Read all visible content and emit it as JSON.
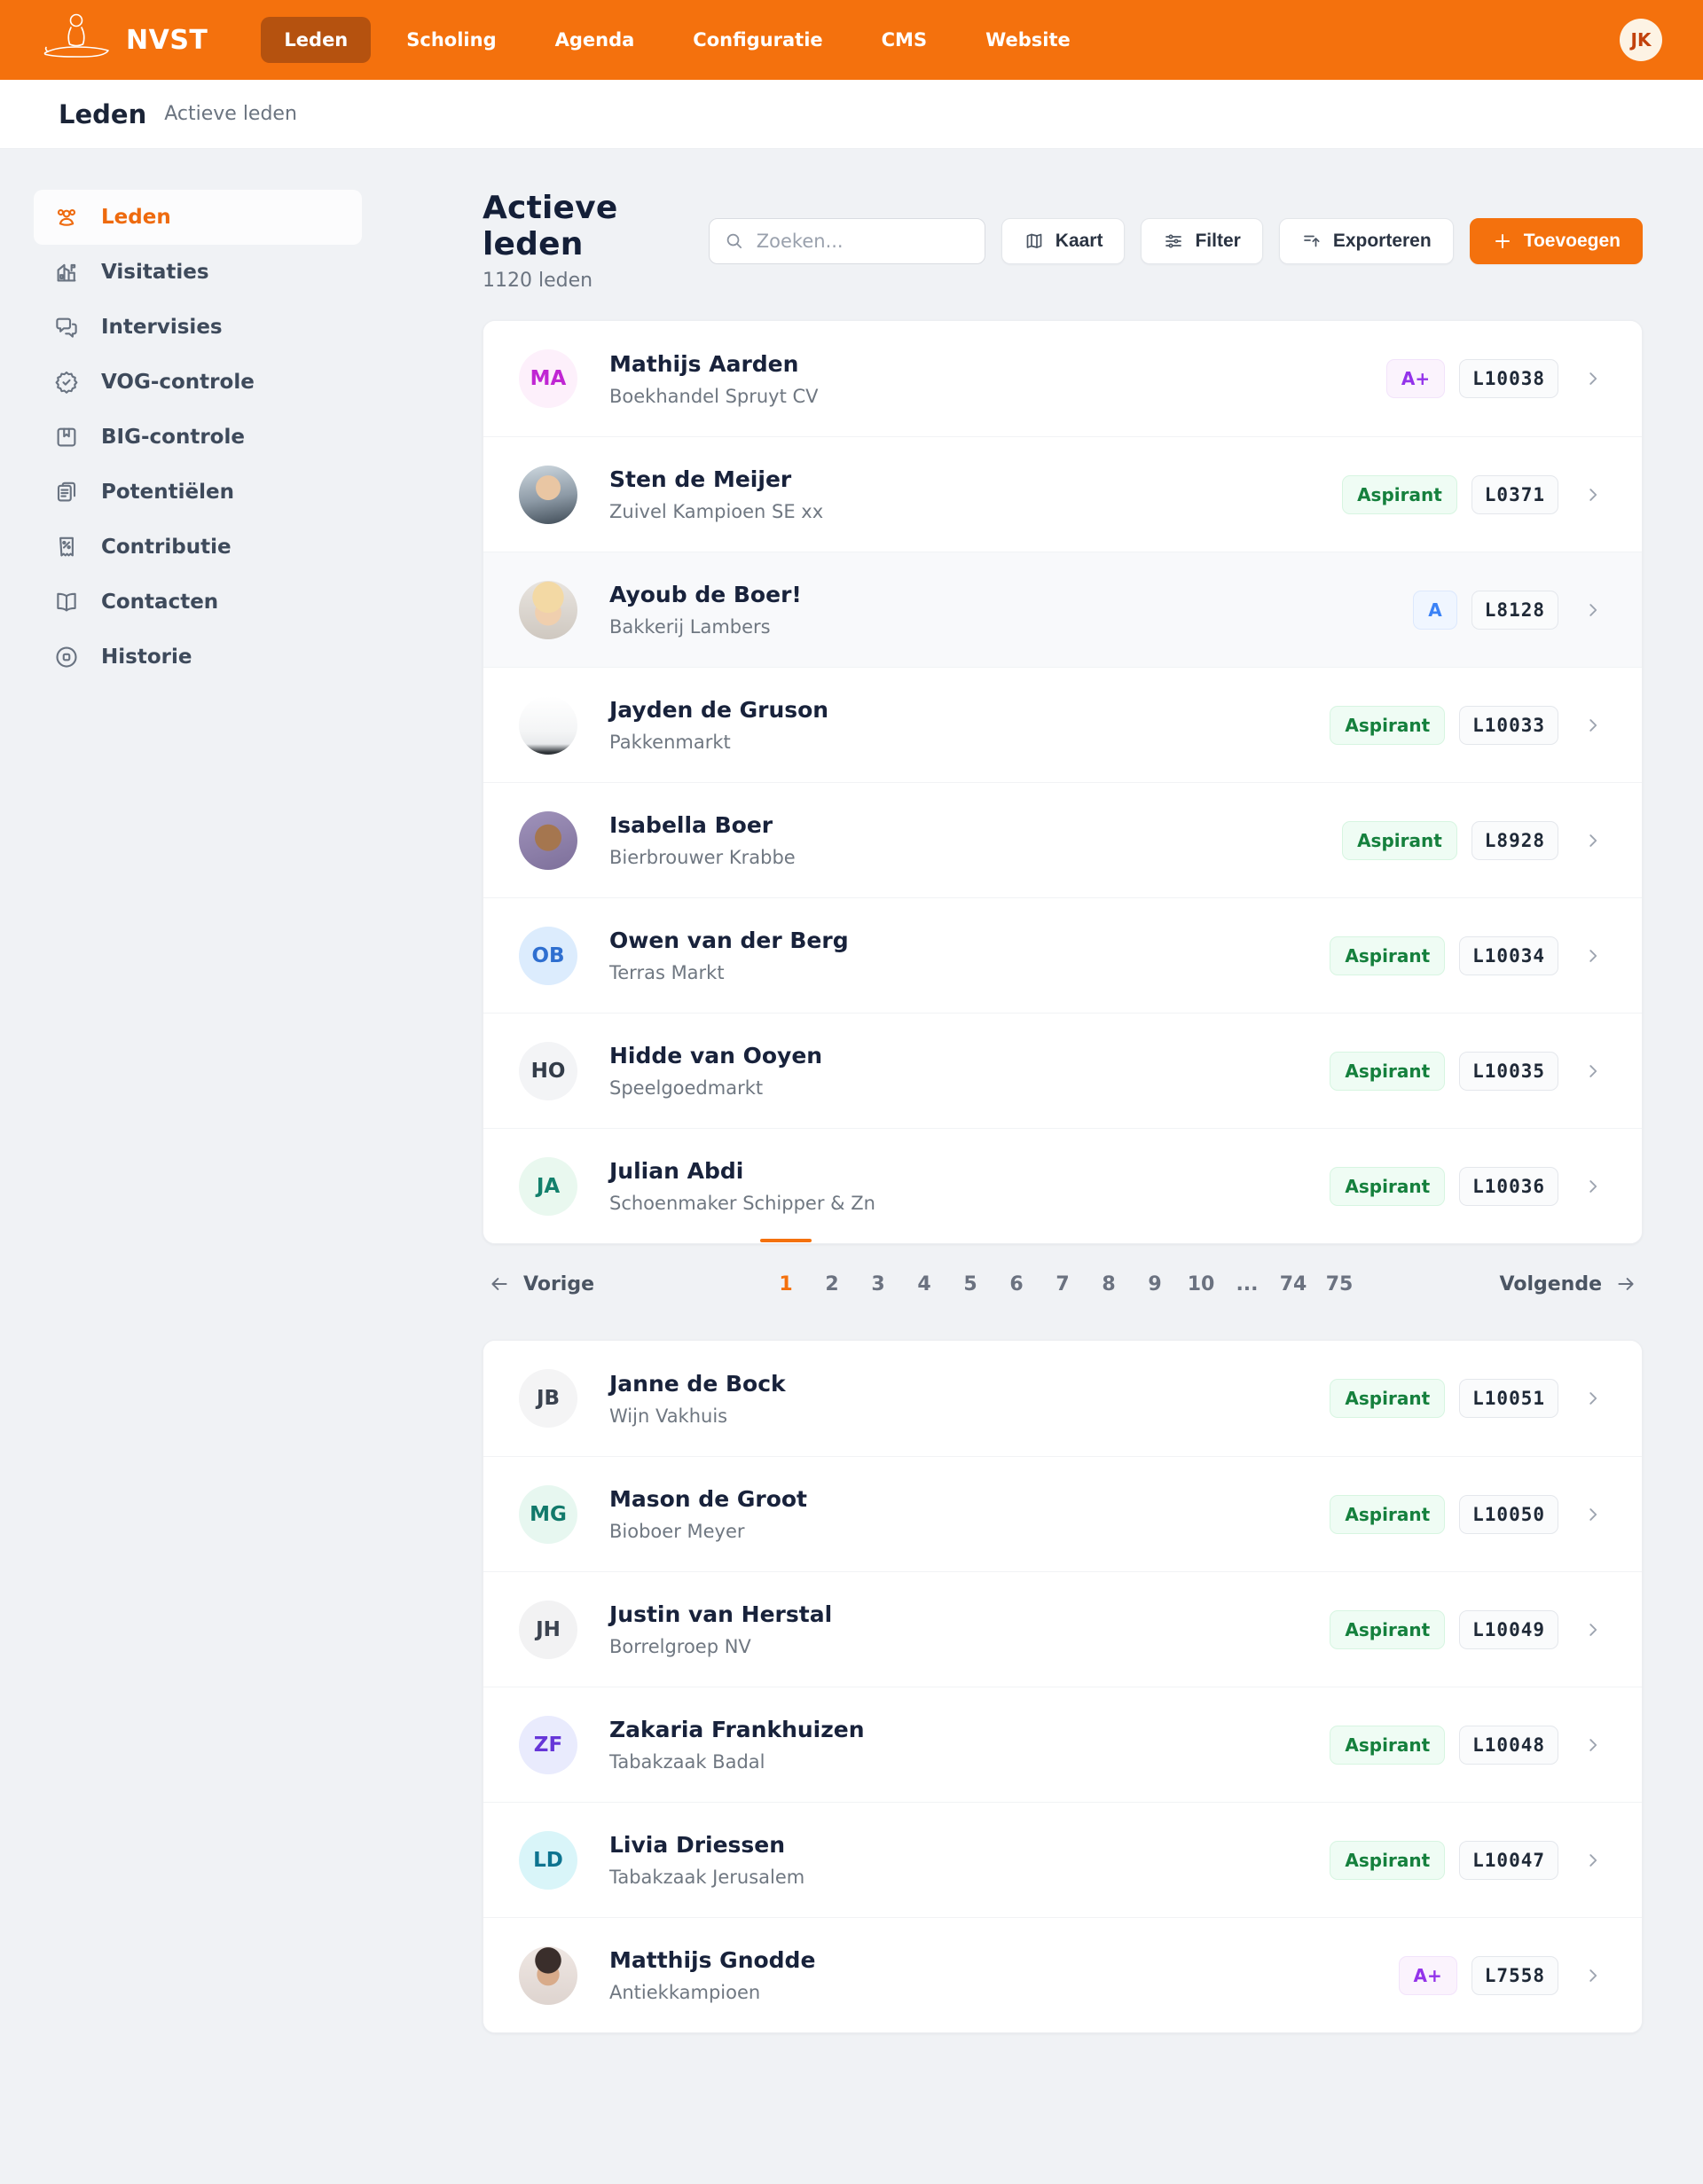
{
  "brand": {
    "name": "NVST"
  },
  "nav": {
    "items": [
      {
        "label": "Leden",
        "active": true
      },
      {
        "label": "Scholing",
        "active": false
      },
      {
        "label": "Agenda",
        "active": false
      },
      {
        "label": "Configuratie",
        "active": false
      },
      {
        "label": "CMS",
        "active": false
      },
      {
        "label": "Website",
        "active": false
      }
    ]
  },
  "user": {
    "initials": "JK"
  },
  "breadcrumb": {
    "section": "Leden",
    "page": "Actieve leden"
  },
  "sidebar": {
    "items": [
      {
        "label": "Leden"
      },
      {
        "label": "Visitaties"
      },
      {
        "label": "Intervisies"
      },
      {
        "label": "VOG-controle"
      },
      {
        "label": "BIG-controle"
      },
      {
        "label": "Potentiëlen"
      },
      {
        "label": "Contributie"
      },
      {
        "label": "Contacten"
      },
      {
        "label": "Historie"
      }
    ]
  },
  "main": {
    "title": "Actieve leden",
    "subtitle": "1120 leden",
    "search": {
      "placeholder": "Zoeken..."
    },
    "toolbar": {
      "map_label": "Kaart",
      "filter_label": "Filter",
      "export_label": "Exporteren",
      "add_label": "Toevoegen"
    }
  },
  "colors": {
    "accent_orange": "#F4710D",
    "nav_active_pill": "#B5520F",
    "badge_green_text": "#15803D",
    "badge_purple_text": "#9333EA",
    "badge_blue_text": "#3B82F6"
  },
  "list_page1": [
    {
      "name": "Mathijs Aarden",
      "company": "Boekhandel Spruyt CV",
      "status": {
        "label": "A+",
        "variant": "purple"
      },
      "member_id": "L10038",
      "avatar": {
        "type": "initials",
        "text": "MA",
        "bg": "#fdf0fb",
        "fg": "#c026d3"
      }
    },
    {
      "name": "Sten de Meijer",
      "company": "Zuivel Kampioen SE xx",
      "status": {
        "label": "Aspirant",
        "variant": "green"
      },
      "member_id": "L0371",
      "avatar": {
        "type": "photo",
        "desc": "man in suit waving",
        "bg": "radial-gradient(circle at 50% 38%, #e9c6a3 0 26%, rgba(0,0,0,0) 27%), linear-gradient(170deg, #cfd9e0 0%, #8d9aa6 55%, #3e4a55 100%)"
      }
    },
    {
      "name": "Ayoub de Boer!",
      "company": "Bakkerij Lambers",
      "highlighted": true,
      "status": {
        "label": "A",
        "variant": "blue"
      },
      "member_id": "L8128",
      "avatar": {
        "type": "photo",
        "desc": "blond toddler",
        "bg": "radial-gradient(circle at 50% 28%, #f3d9a4 0 30%, rgba(0,0,0,0) 31%), radial-gradient(circle at 50% 54%, #f0cfae 0 30%, rgba(0,0,0,0) 31%), linear-gradient(180deg,#e8e4df,#cfc8c0)"
      }
    },
    {
      "name": "Jayden de Gruson",
      "company": "Pakkenmarkt",
      "status": {
        "label": "Aspirant",
        "variant": "green"
      },
      "member_id": "L10033",
      "avatar": {
        "type": "photo",
        "desc": "white document object",
        "bg": "linear-gradient(180deg,#ffffff 0%, #f4f5f6 60%, #e8eaec 82%, #2f3438 96%)"
      }
    },
    {
      "name": "Isabella Boer",
      "company": "Bierbrouwer Krabbe",
      "status": {
        "label": "Aspirant",
        "variant": "green"
      },
      "member_id": "L8928",
      "avatar": {
        "type": "photo",
        "desc": "man on purple background",
        "bg": "radial-gradient(circle at 50% 45%, #a5764f 0 30%, rgba(0,0,0,0) 31%), linear-gradient(160deg,#a093bb 0%, #7d6f9a 100%)"
      }
    },
    {
      "name": "Owen van der Berg",
      "company": "Terras Markt",
      "status": {
        "label": "Aspirant",
        "variant": "green"
      },
      "member_id": "L10034",
      "avatar": {
        "type": "initials",
        "text": "OB",
        "bg": "#dcecfd",
        "fg": "#2f6fd0"
      }
    },
    {
      "name": "Hidde van Ooyen",
      "company": "Speelgoedmarkt",
      "status": {
        "label": "Aspirant",
        "variant": "green"
      },
      "member_id": "L10035",
      "avatar": {
        "type": "initials",
        "text": "HO",
        "bg": "#f3f4f6",
        "fg": "#333c49"
      }
    },
    {
      "name": "Julian Abdi",
      "company": "Schoenmaker Schipper & Zn",
      "status": {
        "label": "Aspirant",
        "variant": "green"
      },
      "member_id": "L10036",
      "avatar": {
        "type": "initials",
        "text": "JA",
        "bg": "#e9f8ef",
        "fg": "#13806c"
      }
    }
  ],
  "pagination": {
    "previous_label": "Vorige",
    "next_label": "Volgende",
    "pages": [
      "1",
      "2",
      "3",
      "4",
      "5",
      "6",
      "7",
      "8",
      "9",
      "10",
      "...",
      "74",
      "75"
    ],
    "active_page": "1"
  },
  "list_page2": [
    {
      "name": "Janne de Bock",
      "company": "Wijn Vakhuis",
      "status": {
        "label": "Aspirant",
        "variant": "green"
      },
      "member_id": "L10051",
      "avatar": {
        "type": "initials",
        "text": "JB",
        "bg": "#f4f4f5",
        "fg": "#3b4350"
      }
    },
    {
      "name": "Mason de Groot",
      "company": "Bioboer Meyer",
      "status": {
        "label": "Aspirant",
        "variant": "green"
      },
      "member_id": "L10050",
      "avatar": {
        "type": "initials",
        "text": "MG",
        "bg": "#e7f7f0",
        "fg": "#11796b"
      }
    },
    {
      "name": "Justin van Herstal",
      "company": "Borrelgroep NV",
      "status": {
        "label": "Aspirant",
        "variant": "green"
      },
      "member_id": "L10049",
      "avatar": {
        "type": "initials",
        "text": "JH",
        "bg": "#f2f2f3",
        "fg": "#3b4350"
      }
    },
    {
      "name": "Zakaria Frankhuizen",
      "company": "Tabakzaak Badal",
      "status": {
        "label": "Aspirant",
        "variant": "green"
      },
      "member_id": "L10048",
      "avatar": {
        "type": "initials",
        "text": "ZF",
        "bg": "#e9ebfd",
        "fg": "#6636d8"
      }
    },
    {
      "name": "Livia Driessen",
      "company": "Tabakzaak Jerusalem",
      "status": {
        "label": "Aspirant",
        "variant": "green"
      },
      "member_id": "L10047",
      "avatar": {
        "type": "initials",
        "text": "LD",
        "bg": "#d9f5f9",
        "fg": "#0e7490"
      }
    },
    {
      "name": "Matthijs Gnodde",
      "company": "Antiekkampioen",
      "status": {
        "label": "A+",
        "variant": "purple"
      },
      "member_id": "L7558",
      "avatar": {
        "type": "photo",
        "desc": "dark-haired man",
        "bg": "radial-gradient(circle at 50% 24%, #3a2e2b 0 24%, rgba(0,0,0,0) 25%), radial-gradient(circle at 50% 48%, #d8ab8a 0 26%, rgba(0,0,0,0) 27%), linear-gradient(180deg,#efe7e3,#ded4cf)"
      }
    }
  ]
}
